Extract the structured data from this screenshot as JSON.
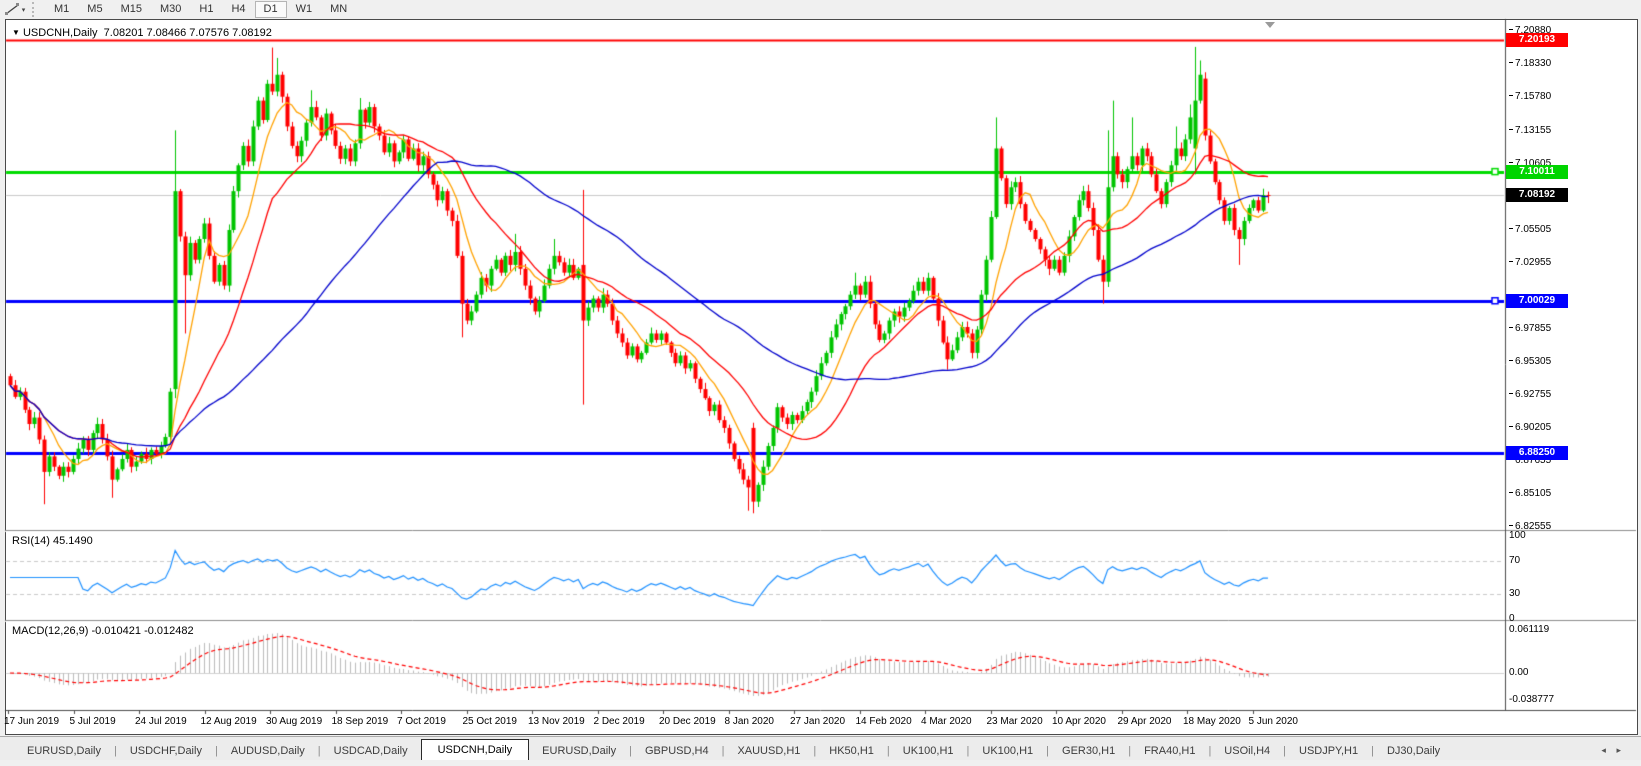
{
  "toolbar": {
    "tool_icon": "trendline-tool-icon",
    "timeframes": [
      "M1",
      "M5",
      "M15",
      "M30",
      "H1",
      "H4",
      "D1",
      "W1",
      "MN"
    ],
    "active_timeframe": "D1"
  },
  "window": {
    "title_symbol": "USDCNH,Daily",
    "title_ohlc": "7.08201 7.08466 7.07576 7.08192",
    "dropdown_triangle": "▼"
  },
  "price_axis": {
    "ticks": [
      {
        "label": "7.20880",
        "price": 7.2088
      },
      {
        "label": "7.18330",
        "price": 7.1833
      },
      {
        "label": "7.15780",
        "price": 7.1578
      },
      {
        "label": "7.13155",
        "price": 7.13155
      },
      {
        "label": "7.10605",
        "price": 7.10605
      },
      {
        "label": "7.05505",
        "price": 7.05505
      },
      {
        "label": "7.02955",
        "price": 7.02955
      },
      {
        "label": "6.97855",
        "price": 6.97855
      },
      {
        "label": "6.95305",
        "price": 6.95305
      },
      {
        "label": "6.92755",
        "price": 6.92755
      },
      {
        "label": "6.90205",
        "price": 6.90205
      },
      {
        "label": "6.87655",
        "price": 6.87655
      },
      {
        "label": "6.85105",
        "price": 6.85105
      },
      {
        "label": "6.82555",
        "price": 6.82555
      }
    ],
    "badges": [
      {
        "label": "7.20193",
        "price": 7.20193,
        "bg": "#FF0000"
      },
      {
        "label": "7.10011",
        "price": 7.10011,
        "bg": "#00D500"
      },
      {
        "label": "7.08192",
        "price": 7.08192,
        "bg": "#000000"
      },
      {
        "label": "7.00029",
        "price": 7.00029,
        "bg": "#0000FF"
      },
      {
        "label": "6.88250",
        "price": 6.8825,
        "bg": "#0000FF"
      }
    ]
  },
  "levels": [
    {
      "price": 7.20193,
      "color": "#FF0000",
      "width": 2,
      "marker": false
    },
    {
      "price": 7.10011,
      "color": "#00DC00",
      "width": 3,
      "marker": true
    },
    {
      "price": 7.08192,
      "color": "#C8C8C8",
      "width": 1,
      "marker": false
    },
    {
      "price": 7.00029,
      "color": "#0000FF",
      "width": 3,
      "marker": true
    },
    {
      "price": 6.8825,
      "color": "#0000FF",
      "width": 3,
      "marker": false
    }
  ],
  "dates": [
    "17 Jun 2019",
    "5 Jul 2019",
    "24 Jul 2019",
    "12 Aug 2019",
    "30 Aug 2019",
    "18 Sep 2019",
    "7 Oct 2019",
    "25 Oct 2019",
    "13 Nov 2019",
    "2 Dec 2019",
    "20 Dec 2019",
    "8 Jan 2020",
    "27 Jan 2020",
    "14 Feb 2020",
    "4 Mar 2020",
    "23 Mar 2020",
    "10 Apr 2020",
    "29 Apr 2020",
    "18 May 2020",
    "5 Jun 2020"
  ],
  "rsi": {
    "label": "RSI(14) 45.1490",
    "period": 14,
    "current_value": "45.1490",
    "axis_ticks": [
      "100",
      "70",
      "30",
      "0"
    ],
    "level_lines": [
      70,
      30
    ],
    "line_color": "#1E90FF"
  },
  "macd": {
    "label": "MACD(12,26,9) -0.010421 -0.012482",
    "current_main": -0.010421,
    "current_signal": -0.012482,
    "axis_ticks": [
      "0.061119",
      "0.00",
      "-0.038777"
    ],
    "hist_color": "#BBBBBB",
    "signal_color": "#FF0000"
  },
  "chart_data": {
    "type": "candlestick",
    "symbol": "USDCNH",
    "timeframe": "Daily",
    "title": "USDCNH,Daily",
    "ylim": [
      6.8255,
      7.211
    ],
    "x_labels": [
      "17 Jun 2019",
      "5 Jul 2019",
      "24 Jul 2019",
      "12 Aug 2019",
      "30 Aug 2019",
      "18 Sep 2019",
      "7 Oct 2019",
      "25 Oct 2019",
      "13 Nov 2019",
      "2 Dec 2019",
      "20 Dec 2019",
      "8 Jan 2020",
      "27 Jan 2020",
      "14 Feb 2020",
      "4 Mar 2020",
      "23 Mar 2020",
      "10 Apr 2020",
      "29 Apr 2020",
      "18 May 2020",
      "5 Jun 2020"
    ],
    "bars_per_label": 14,
    "closes": [
      6.935,
      6.926,
      6.93,
      6.916,
      6.905,
      6.91,
      6.893,
      6.868,
      6.88,
      6.872,
      6.865,
      6.872,
      6.868,
      6.878,
      6.886,
      6.893,
      6.885,
      6.898,
      6.905,
      6.893,
      6.88,
      6.862,
      6.87,
      6.878,
      6.885,
      6.872,
      6.876,
      6.882,
      6.878,
      6.885,
      6.882,
      6.888,
      6.895,
      6.93,
      7.085,
      7.05,
      7.02,
      7.045,
      7.032,
      7.048,
      7.06,
      7.035,
      7.015,
      7.028,
      7.012,
      7.055,
      7.085,
      7.105,
      7.12,
      7.108,
      7.135,
      7.155,
      7.14,
      7.168,
      7.162,
      7.175,
      7.158,
      7.135,
      7.12,
      7.112,
      7.124,
      7.138,
      7.15,
      7.142,
      7.128,
      7.145,
      7.132,
      7.12,
      7.11,
      7.118,
      7.108,
      7.122,
      7.148,
      7.138,
      7.15,
      7.135,
      7.128,
      7.115,
      7.122,
      7.108,
      7.115,
      7.125,
      7.11,
      7.118,
      7.105,
      7.112,
      7.098,
      7.09,
      7.078,
      7.085,
      7.07,
      7.062,
      7.035,
      6.998,
      6.985,
      6.992,
      7.005,
      7.018,
      7.012,
      7.025,
      7.032,
      7.022,
      7.035,
      7.028,
      7.038,
      7.025,
      7.012,
      7.002,
      6.992,
      7.0,
      7.012,
      7.025,
      7.035,
      7.03,
      7.022,
      7.028,
      7.018,
      7.025,
      6.985,
      6.995,
      7.002,
      6.995,
      7.005,
      6.998,
      6.985,
      6.975,
      6.968,
      6.958,
      6.965,
      6.955,
      6.96,
      6.968,
      6.975,
      6.97,
      6.975,
      6.968,
      6.96,
      6.952,
      6.958,
      6.948,
      6.952,
      6.94,
      6.932,
      6.925,
      6.915,
      6.92,
      6.908,
      6.902,
      6.89,
      6.878,
      6.87,
      6.862,
      6.856,
      6.845,
      6.858,
      6.872,
      6.888,
      6.902,
      6.918,
      6.91,
      6.905,
      6.912,
      6.908,
      6.915,
      6.922,
      6.93,
      6.942,
      6.952,
      6.96,
      6.972,
      6.982,
      6.99,
      6.996,
      7.005,
      7.012,
      7.005,
      7.015,
      6.998,
      6.982,
      6.97,
      6.975,
      6.985,
      6.992,
      6.988,
      6.995,
      7.0,
      7.008,
      7.015,
      7.008,
      7.018,
      7.002,
      6.985,
      6.968,
      6.955,
      6.962,
      6.972,
      6.98,
      6.975,
      6.96,
      6.978,
      7.005,
      7.032,
      7.065,
      7.118,
      7.095,
      7.075,
      7.088,
      7.092,
      7.075,
      7.062,
      7.055,
      7.048,
      7.04,
      7.032,
      7.025,
      7.032,
      7.022,
      7.035,
      7.05,
      7.065,
      7.078,
      7.085,
      7.072,
      7.055,
      7.032,
      7.015,
      7.088,
      7.112,
      7.098,
      7.092,
      7.102,
      7.112,
      7.105,
      7.118,
      7.112,
      7.098,
      7.085,
      7.075,
      7.092,
      7.105,
      7.118,
      7.112,
      7.125,
      7.142,
      7.155,
      7.175,
      7.128,
      7.108,
      7.092,
      7.078,
      7.062,
      7.072,
      7.055,
      7.048,
      7.062,
      7.072,
      7.078,
      7.07,
      7.082,
      7.082
    ],
    "special_candles": {
      "7": {
        "l": 6.843
      },
      "21": {
        "l": 6.848
      },
      "34": {
        "o": 6.932,
        "h": 7.132,
        "l": 6.925
      },
      "36": {
        "l": 6.975
      },
      "54": {
        "h": 7.196
      },
      "55": {
        "h": 7.188
      },
      "62": {
        "h": 7.163
      },
      "72": {
        "h": 7.157
      },
      "93": {
        "l": 6.972
      },
      "104": {
        "h": 7.052
      },
      "112": {
        "h": 7.048
      },
      "118": {
        "o": 7.028,
        "h": 7.086,
        "l": 6.92
      },
      "152": {
        "l": 6.838
      },
      "153": {
        "o": 6.902,
        "h": 6.906,
        "l": 6.836
      },
      "174": {
        "h": 7.022
      },
      "193": {
        "l": 6.947
      },
      "203": {
        "h": 7.142
      },
      "225": {
        "l": 6.998
      },
      "226": {
        "h": 7.132
      },
      "227": {
        "h": 7.155
      },
      "231": {
        "h": 7.142
      },
      "240": {
        "h": 7.135
      },
      "243": {
        "h": 7.152
      },
      "244": {
        "o": 7.118,
        "h": 7.1965,
        "l": 7.098
      },
      "245": {
        "h": 7.186
      },
      "246": {
        "o": 7.172
      },
      "253": {
        "l": 7.028
      },
      "259": {
        "o": 7.08201,
        "h": 7.08466,
        "l": 7.07576
      }
    },
    "last_candle_ohlc": {
      "open": 7.08201,
      "high": 7.08466,
      "low": 7.07576,
      "close": 7.08192
    },
    "colors": {
      "up": "#00C400",
      "down": "#FF0000"
    },
    "moving_averages": [
      {
        "period": 8,
        "color": "#FFA200",
        "name": "fast-ma"
      },
      {
        "period": 21,
        "color": "#FF0000",
        "name": "mid-ma"
      },
      {
        "period": 55,
        "color": "#0000CC",
        "name": "slow-ma"
      }
    ]
  },
  "tabs": {
    "items": [
      "EURUSD,Daily",
      "USDCHF,Daily",
      "AUDUSD,Daily",
      "USDCAD,Daily",
      "USDCNH,Daily",
      "EURUSD,Daily",
      "GBPUSD,H4",
      "XAUUSD,H1",
      "HK50,H1",
      "UK100,H1",
      "UK100,H1",
      "GER30,H1",
      "FRA40,H1",
      "USOil,H4",
      "USDJPY,H1",
      "DJ30,Daily"
    ],
    "active_index": 4,
    "left_arrow": "◂",
    "right_arrow": "▸"
  }
}
